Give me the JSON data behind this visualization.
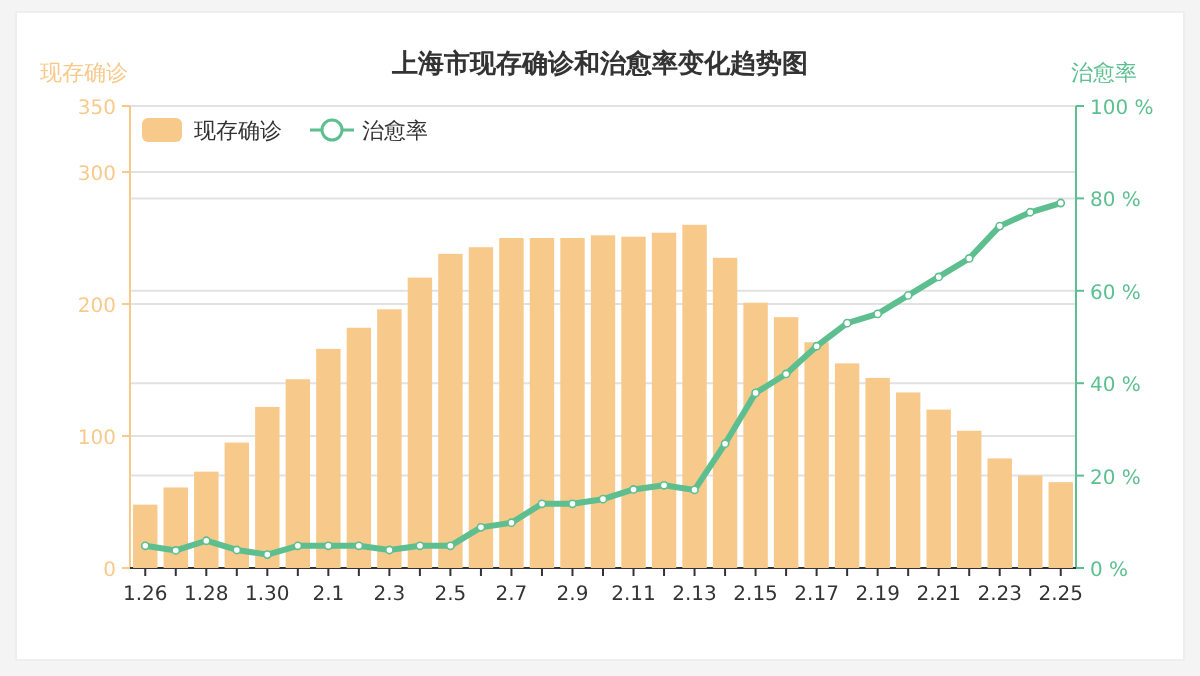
{
  "chart_data": {
    "type": "bar",
    "title": "上海市现存确诊和治愈率变化趋势图",
    "ylabel": "现存确诊",
    "y2label": "治愈率",
    "categories": [
      "1.26",
      null,
      "1.28",
      null,
      "1.30",
      null,
      "2.1",
      null,
      "2.3",
      null,
      "2.5",
      null,
      "2.7",
      null,
      "2.9",
      null,
      "2.11",
      null,
      "2.13",
      null,
      "2.15",
      null,
      "2.17",
      null,
      "2.19",
      null,
      "2.21",
      null,
      "2.23",
      null,
      "2.25"
    ],
    "series": [
      {
        "name": "现存确诊",
        "color": "#f7c98b",
        "values": [
          48,
          61,
          73,
          95,
          122,
          143,
          166,
          182,
          196,
          220,
          238,
          243,
          250,
          250,
          250,
          252,
          251,
          254,
          260,
          235,
          201,
          190,
          171,
          155,
          144,
          133,
          120,
          104,
          83,
          70,
          65
        ]
      },
      {
        "name": "治愈率",
        "type": "line",
        "axis": "y2",
        "color": "#5dbf8f",
        "marker": "circle",
        "values": [
          4.8,
          3.8,
          5.9,
          3.9,
          2.9,
          4.8,
          4.8,
          4.8,
          3.9,
          4.8,
          4.8,
          8.8,
          9.8,
          13.9,
          13.9,
          14.9,
          17,
          17.9,
          16.9,
          26.9,
          37.9,
          42,
          48,
          53,
          55,
          59,
          63,
          67,
          74,
          77,
          79
        ]
      }
    ],
    "ylim": [
      0,
      350
    ],
    "yticks": [
      0,
      100,
      200,
      300,
      350
    ],
    "y2lim": [
      0,
      100
    ],
    "y2ticks": [
      {
        "value": 0,
        "label": "0 %"
      },
      {
        "value": 20,
        "label": "20 %"
      },
      {
        "value": 40,
        "label": "40 %"
      },
      {
        "value": 60,
        "label": "60 %"
      },
      {
        "value": 80,
        "label": "80 %"
      },
      {
        "value": 100,
        "label": "100 %"
      }
    ],
    "grid": "y",
    "legend": "top left"
  }
}
